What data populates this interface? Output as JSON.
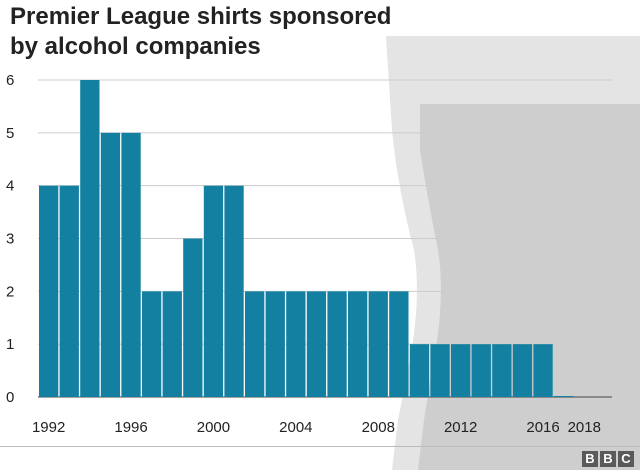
{
  "header": {
    "title_line1": "Premier League shirts sponsored",
    "title_line2": "by alcohol companies"
  },
  "chart_data": {
    "type": "bar",
    "title": "Premier League shirts sponsored by alcohol companies",
    "xlabel": "",
    "ylabel": "",
    "x": [
      1992,
      1993,
      1994,
      1995,
      1996,
      1997,
      1998,
      1999,
      2000,
      2001,
      2002,
      2003,
      2004,
      2005,
      2006,
      2007,
      2008,
      2009,
      2010,
      2011,
      2012,
      2013,
      2014,
      2015,
      2016,
      2017
    ],
    "values": [
      4,
      4,
      6,
      5,
      5,
      2,
      2,
      3,
      4,
      4,
      2,
      2,
      2,
      2,
      2,
      2,
      2,
      2,
      1,
      1,
      1,
      1,
      1,
      1,
      1,
      0
    ],
    "x_ticks": [
      "1992",
      "1996",
      "2000",
      "2004",
      "2008",
      "2012",
      "2016",
      "2018"
    ],
    "y_ticks": [
      "0",
      "1",
      "2",
      "3",
      "4",
      "5",
      "6"
    ],
    "ylim": [
      0,
      6
    ],
    "grid": true,
    "bar_color": "#1380a1",
    "background_graphic": "pint-glass"
  },
  "footer": {
    "logo": [
      "B",
      "B",
      "C"
    ]
  }
}
